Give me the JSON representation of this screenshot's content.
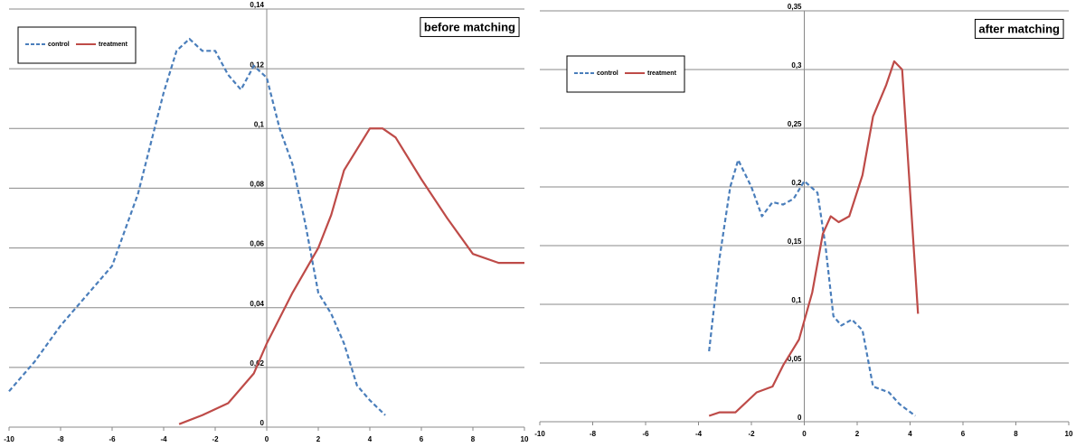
{
  "chart_data": [
    {
      "type": "line",
      "annotation": "before matching",
      "legend": "upper left",
      "grid": true,
      "xlim": [
        -10,
        10
      ],
      "xticks": [
        -10,
        -8,
        -6,
        -4,
        -2,
        0,
        2,
        4,
        6,
        8,
        10
      ],
      "ylim": [
        0,
        0.14
      ],
      "yticks": [
        0,
        {
          "value": 0.02,
          "label": "0,02"
        },
        {
          "value": 0.04,
          "label": "0,04"
        },
        {
          "value": 0.06,
          "label": "0,06"
        },
        {
          "value": 0.08,
          "label": "0,08"
        },
        {
          "value": 0.1,
          "label": "0,1"
        },
        {
          "value": 0.12,
          "label": "0,12"
        },
        {
          "value": 0.14,
          "label": "0,14"
        }
      ],
      "series": [
        {
          "name": "control",
          "color": "#4a7ebb",
          "style": "dashed",
          "x": [
            -10,
            -9,
            -8,
            -7,
            -6,
            -5,
            -4,
            -3.5,
            -3,
            -2.5,
            -2,
            -1.5,
            -1,
            -0.5,
            0,
            0.5,
            1,
            1.5,
            2,
            2.5,
            3,
            3.5,
            4,
            4.6
          ],
          "values": [
            0.012,
            0.022,
            0.034,
            0.044,
            0.054,
            0.078,
            0.112,
            0.126,
            0.13,
            0.126,
            0.126,
            0.118,
            0.113,
            0.121,
            0.117,
            0.1,
            0.088,
            0.068,
            0.045,
            0.038,
            0.028,
            0.014,
            0.009,
            0.004
          ]
        },
        {
          "name": "treatment",
          "color": "#be4b48",
          "style": "solid",
          "x": [
            -3.4,
            -2.5,
            -1.5,
            -0.5,
            0,
            1,
            2,
            2.5,
            3,
            4,
            4.5,
            5,
            6,
            7,
            8,
            9,
            10
          ],
          "values": [
            0.001,
            0.004,
            0.008,
            0.018,
            0.028,
            0.045,
            0.06,
            0.071,
            0.086,
            0.1,
            0.1,
            0.097,
            0.083,
            0.07,
            0.058,
            0.055,
            0.055
          ]
        }
      ]
    },
    {
      "type": "line",
      "annotation": "after matching",
      "legend": "upper left",
      "grid": true,
      "xlim": [
        -10,
        10
      ],
      "xticks": [
        -10,
        -8,
        -6,
        -4,
        -2,
        0,
        2,
        4,
        6,
        8,
        10
      ],
      "ylim": [
        0,
        0.35
      ],
      "yticks": [
        0,
        {
          "value": 0.05,
          "label": "0,05"
        },
        {
          "value": 0.1,
          "label": "0,1"
        },
        {
          "value": 0.15,
          "label": "0,15"
        },
        {
          "value": 0.2,
          "label": "0,2"
        },
        {
          "value": 0.25,
          "label": "0,25"
        },
        {
          "value": 0.3,
          "label": "0,3"
        },
        {
          "value": 0.35,
          "label": "0,35"
        }
      ],
      "series": [
        {
          "name": "control",
          "color": "#4a7ebb",
          "style": "dashed",
          "x": [
            -3.6,
            -3.2,
            -2.8,
            -2.5,
            -2,
            -1.6,
            -1.2,
            -0.8,
            -0.4,
            0,
            0.5,
            0.8,
            1.1,
            1.4,
            1.8,
            2.2,
            2.6,
            3.2,
            3.6,
            4.2
          ],
          "values": [
            0.06,
            0.14,
            0.2,
            0.223,
            0.2,
            0.175,
            0.187,
            0.185,
            0.19,
            0.205,
            0.195,
            0.15,
            0.09,
            0.082,
            0.087,
            0.078,
            0.03,
            0.025,
            0.015,
            0.005
          ]
        },
        {
          "name": "treatment",
          "color": "#be4b48",
          "style": "solid",
          "x": [
            -3.6,
            -3.2,
            -2.6,
            -1.8,
            -1.2,
            -0.8,
            -0.2,
            0.3,
            0.7,
            1,
            1.3,
            1.7,
            2.2,
            2.6,
            3.1,
            3.4,
            3.7,
            4.3
          ],
          "values": [
            0.005,
            0.008,
            0.008,
            0.025,
            0.03,
            0.048,
            0.07,
            0.11,
            0.16,
            0.175,
            0.17,
            0.175,
            0.21,
            0.26,
            0.287,
            0.307,
            0.3,
            0.092
          ]
        }
      ]
    }
  ]
}
